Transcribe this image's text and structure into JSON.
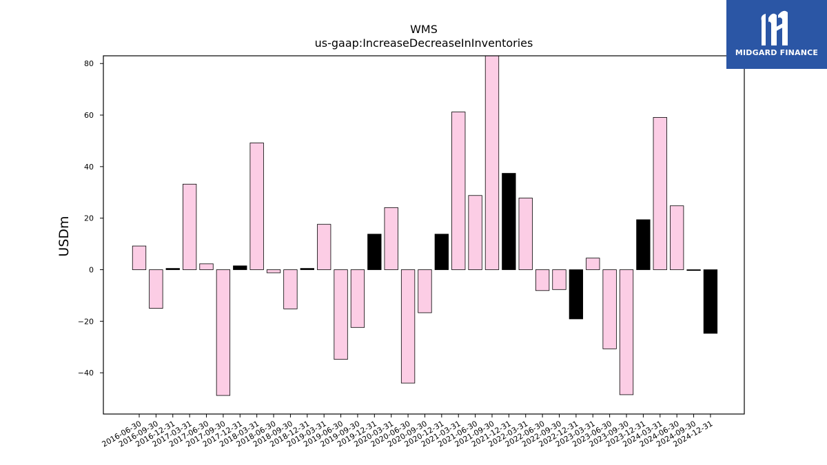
{
  "logo": {
    "text": "MIDGARD FINANCE",
    "bg_color": "#2b56a5"
  },
  "chart_data": {
    "type": "bar",
    "title": "WMS",
    "subtitle": "us-gaap:IncreaseDecreaseInInventories",
    "ylabel": "USDm",
    "xlabel": "",
    "ylim": [
      -56,
      83
    ],
    "yticks": [
      -40,
      -20,
      0,
      20,
      40,
      60,
      80
    ],
    "grid": false,
    "categories": [
      "2016-06-30",
      "2016-09-30",
      "2016-12-31",
      "2017-03-31",
      "2017-06-30",
      "2017-09-30",
      "2017-12-31",
      "2018-03-31",
      "2018-06-30",
      "2018-09-30",
      "2018-12-31",
      "2019-03-31",
      "2019-06-30",
      "2019-09-30",
      "2019-12-31",
      "2020-03-31",
      "2020-06-30",
      "2020-09-30",
      "2020-12-31",
      "2021-03-31",
      "2021-06-30",
      "2021-09-30",
      "2021-12-31",
      "2022-03-31",
      "2022-06-30",
      "2022-09-30",
      "2022-12-31",
      "2023-03-31",
      "2023-06-30",
      "2023-09-30",
      "2023-12-31",
      "2024-03-31",
      "2024-06-30",
      "2024-09-30",
      "2024-12-31"
    ],
    "values": [
      9.2,
      -15.0,
      0.5,
      33.2,
      2.3,
      -48.8,
      1.5,
      49.2,
      -1.2,
      -15.2,
      0.5,
      17.6,
      -34.8,
      -22.4,
      13.8,
      24.1,
      -44.0,
      -16.7,
      13.8,
      61.2,
      28.8,
      84.0,
      37.4,
      27.8,
      -8.1,
      -7.7,
      -19.1,
      4.5,
      -30.7,
      -48.5,
      19.4,
      59.1,
      24.8,
      -0.3,
      -24.7
    ],
    "colors": [
      "#fccde5",
      "#fccde5",
      "#000000",
      "#fccde5",
      "#fccde5",
      "#fccde5",
      "#000000",
      "#fccde5",
      "#fccde5",
      "#fccde5",
      "#000000",
      "#fccde5",
      "#fccde5",
      "#fccde5",
      "#000000",
      "#fccde5",
      "#fccde5",
      "#fccde5",
      "#000000",
      "#fccde5",
      "#fccde5",
      "#fccde5",
      "#000000",
      "#fccde5",
      "#fccde5",
      "#fccde5",
      "#000000",
      "#fccde5",
      "#fccde5",
      "#fccde5",
      "#000000",
      "#fccde5",
      "#fccde5",
      "#000000",
      "#000000"
    ],
    "bar_edge_color": "#000000"
  }
}
